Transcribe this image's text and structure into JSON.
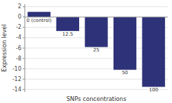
{
  "chart_data": {
    "type": "bar",
    "categories": [
      "0 (control)",
      "12.5",
      "25",
      "50",
      "100"
    ],
    "values": [
      1.0,
      -2.7,
      -5.8,
      -10.2,
      -13.5
    ],
    "color": "#2e3278",
    "xlabel": "SNPs concentrations",
    "ylabel": "Expression level",
    "ylim": [
      -14.5,
      2.5
    ],
    "yticks": [
      2,
      0,
      -2,
      -4,
      -6,
      -8,
      -10,
      -12,
      -14
    ],
    "grid": true
  }
}
